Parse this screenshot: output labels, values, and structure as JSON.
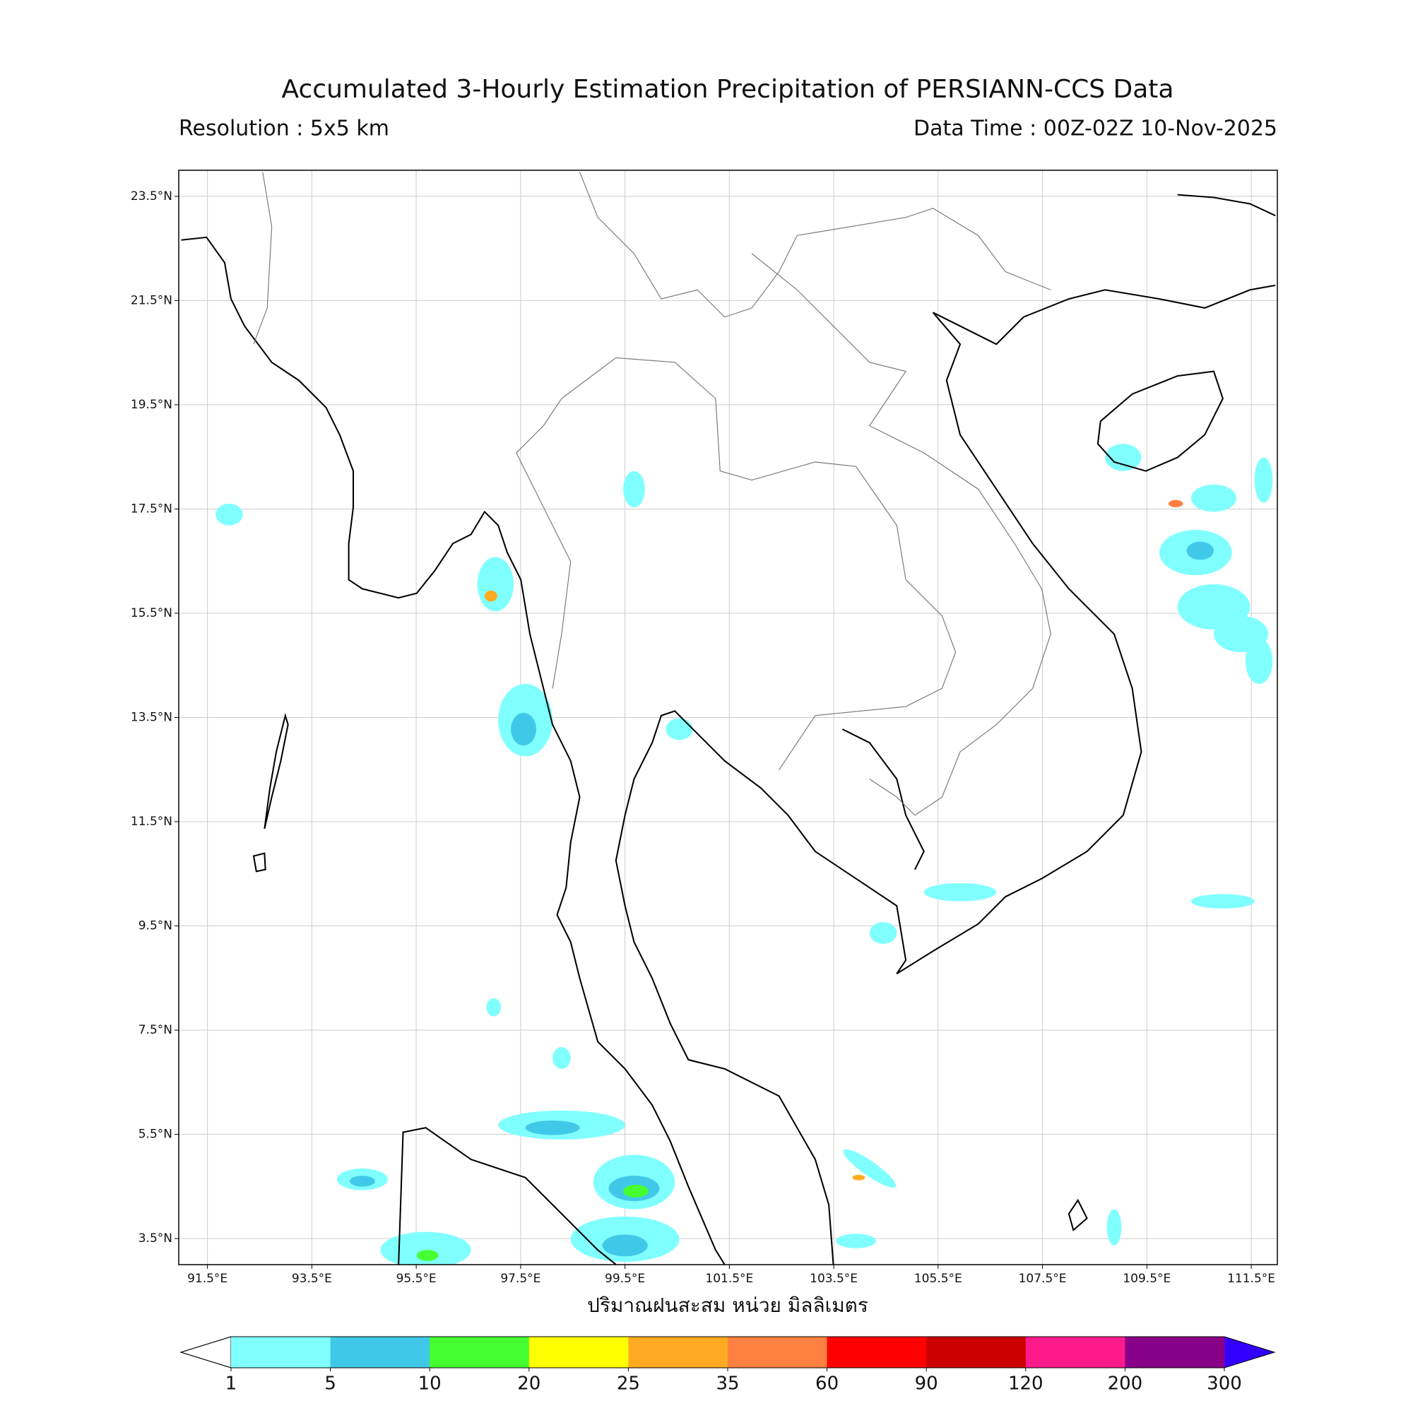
{
  "chart_data": {
    "type": "map",
    "title": "Accumulated 3-Hourly Estimation Precipitation of PERSIANN-CCS Data",
    "subtitle_left": "Resolution : 5x5 km",
    "subtitle_right": "Data Time : 00Z-02Z 10-Nov-2025",
    "xlim": [
      90.95,
      112.0
    ],
    "ylim": [
      3.0,
      24.0
    ],
    "xticks": [
      {
        "value": 91.5,
        "label": "91.5°E"
      },
      {
        "value": 93.5,
        "label": "93.5°E"
      },
      {
        "value": 95.5,
        "label": "95.5°E"
      },
      {
        "value": 97.5,
        "label": "97.5°E"
      },
      {
        "value": 99.5,
        "label": "99.5°E"
      },
      {
        "value": 101.5,
        "label": "101.5°E"
      },
      {
        "value": 103.5,
        "label": "103.5°E"
      },
      {
        "value": 105.5,
        "label": "105.5°E"
      },
      {
        "value": 107.5,
        "label": "107.5°E"
      },
      {
        "value": 109.5,
        "label": "109.5°E"
      },
      {
        "value": 111.5,
        "label": "111.5°E"
      }
    ],
    "yticks": [
      {
        "value": 3.5,
        "label": "3.5°N"
      },
      {
        "value": 5.5,
        "label": "5.5°N"
      },
      {
        "value": 7.5,
        "label": "7.5°N"
      },
      {
        "value": 9.5,
        "label": "9.5°N"
      },
      {
        "value": 11.5,
        "label": "11.5°N"
      },
      {
        "value": 13.5,
        "label": "13.5°N"
      },
      {
        "value": 15.5,
        "label": "15.5°N"
      },
      {
        "value": 17.5,
        "label": "17.5°N"
      },
      {
        "value": 19.5,
        "label": "19.5°N"
      },
      {
        "value": 21.5,
        "label": "21.5°N"
      },
      {
        "value": 23.5,
        "label": "23.5°N"
      }
    ],
    "grid": true,
    "colorbar": {
      "label": "ปริมาณฝนสะสม หน่วย มิลลิเมตร",
      "bounds": [
        1,
        5,
        10,
        20,
        25,
        35,
        60,
        90,
        120,
        200,
        300
      ],
      "colors": [
        "#80ffff",
        "#40c8e8",
        "#45ff30",
        "#ffff00",
        "#ffaa20",
        "#ff8040",
        "#ff0000",
        "#cc0000",
        "#ff1a8c",
        "#880088"
      ],
      "under_color": "#ffffff",
      "over_color": "#3300ff"
    }
  }
}
